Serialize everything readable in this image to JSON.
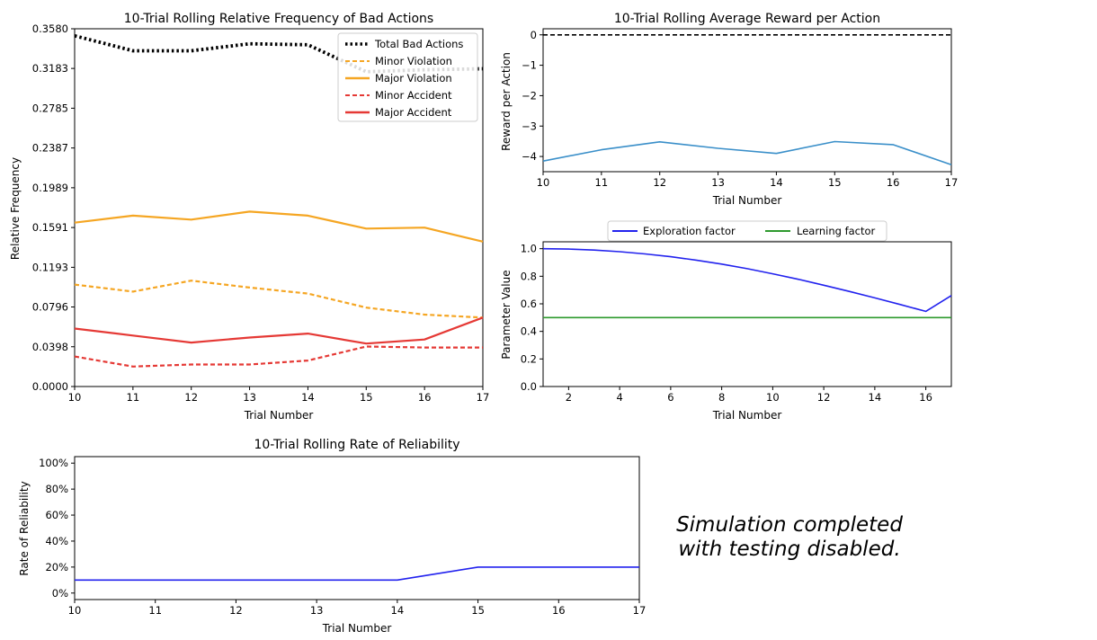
{
  "chart_data": [
    {
      "id": "bad",
      "type": "line",
      "title": "10-Trial Rolling Relative Frequency of Bad Actions",
      "xlabel": "Trial Number",
      "ylabel": "Relative Frequency",
      "xlim": [
        10,
        17
      ],
      "ylim": [
        0,
        0.358
      ],
      "xticks": [
        "10",
        "11",
        "12",
        "13",
        "14",
        "15",
        "16",
        "17"
      ],
      "yticks": [
        "0.0000",
        "0.0398",
        "0.0796",
        "0.1193",
        "0.1591",
        "0.1989",
        "0.2387",
        "0.2785",
        "0.3183",
        "0.3580"
      ],
      "legend_position": "upper right",
      "x": [
        10,
        11,
        12,
        13,
        14,
        15,
        16,
        17
      ],
      "series": [
        {
          "name": "Total Bad Actions",
          "color": "#000000",
          "style": "dotted",
          "values": [
            0.351,
            0.336,
            0.336,
            0.343,
            0.342,
            0.315,
            0.317,
            0.318
          ]
        },
        {
          "name": "Minor Violation",
          "color": "#f5a623",
          "style": "dashed",
          "values": [
            0.102,
            0.095,
            0.106,
            0.099,
            0.093,
            0.079,
            0.072,
            0.069
          ]
        },
        {
          "name": "Major Violation",
          "color": "#f5a623",
          "style": "solid",
          "values": [
            0.164,
            0.171,
            0.167,
            0.175,
            0.171,
            0.158,
            0.159,
            0.145
          ]
        },
        {
          "name": "Minor Accident",
          "color": "#e53935",
          "style": "dashed",
          "values": [
            0.03,
            0.02,
            0.022,
            0.022,
            0.026,
            0.04,
            0.039,
            0.039
          ]
        },
        {
          "name": "Major Accident",
          "color": "#e53935",
          "style": "solid",
          "values": [
            0.058,
            0.051,
            0.044,
            0.049,
            0.053,
            0.043,
            0.047,
            0.069
          ]
        }
      ]
    },
    {
      "id": "reward",
      "type": "line",
      "title": "10-Trial Rolling Average Reward per Action",
      "xlabel": "Trial Number",
      "ylabel": "Reward per Action",
      "xlim": [
        10,
        17
      ],
      "ylim": [
        -4.5,
        0.2
      ],
      "xticks": [
        "10",
        "11",
        "12",
        "13",
        "14",
        "15",
        "16",
        "17"
      ],
      "ytick_values": [
        0,
        -1,
        -2,
        -3,
        -4
      ],
      "yticks": [
        "0",
        "−1",
        "−2",
        "−3",
        "−4"
      ],
      "x": [
        10,
        11,
        12,
        13,
        14,
        15,
        16,
        17
      ],
      "series": [
        {
          "color": "#3a8fc9",
          "style": "solid",
          "values": [
            -4.15,
            -3.78,
            -3.52,
            -3.73,
            -3.9,
            -3.51,
            -3.61,
            -4.27
          ]
        },
        {
          "color": "#000000",
          "style": "dashed",
          "values": [
            0,
            0,
            0,
            0,
            0,
            0,
            0,
            0
          ]
        }
      ]
    },
    {
      "id": "params",
      "type": "line",
      "title": "",
      "xlabel": "Trial Number",
      "ylabel": "Parameter Value",
      "xlim": [
        1,
        17
      ],
      "ylim": [
        0,
        1.05
      ],
      "xtick_values": [
        2,
        4,
        6,
        8,
        10,
        12,
        14,
        16
      ],
      "xticks": [
        "2",
        "4",
        "6",
        "8",
        "10",
        "12",
        "14",
        "16"
      ],
      "ytick_values": [
        0,
        0.2,
        0.4,
        0.6,
        0.8,
        1.0
      ],
      "yticks": [
        "0.0",
        "0.2",
        "0.4",
        "0.6",
        "0.8",
        "1.0"
      ],
      "legend_position": "top (above plot)",
      "x": [
        1,
        2,
        3,
        4,
        5,
        6,
        7,
        8,
        9,
        10,
        11,
        12,
        13,
        14,
        15,
        16,
        17
      ],
      "series": [
        {
          "name": "Exploration factor",
          "color": "#2222ee",
          "style": "solid",
          "values": [
            1.0,
            0.997,
            0.99,
            0.978,
            0.962,
            0.942,
            0.917,
            0.888,
            0.855,
            0.818,
            0.778,
            0.735,
            0.69,
            0.643,
            0.595,
            0.545,
            0.66
          ]
        },
        {
          "name": "Learning factor",
          "color": "#2e9a2e",
          "style": "solid",
          "values": [
            0.5,
            0.5,
            0.5,
            0.5,
            0.5,
            0.5,
            0.5,
            0.5,
            0.5,
            0.5,
            0.5,
            0.5,
            0.5,
            0.5,
            0.5,
            0.5,
            0.5
          ]
        }
      ]
    },
    {
      "id": "reliability",
      "type": "line",
      "title": "10-Trial Rolling Rate of Reliability",
      "xlabel": "Trial Number",
      "ylabel": "Rate of Reliability",
      "xlim": [
        10,
        17
      ],
      "ylim": [
        -5,
        105
      ],
      "xticks": [
        "10",
        "11",
        "12",
        "13",
        "14",
        "15",
        "16",
        "17"
      ],
      "ytick_values": [
        0,
        20,
        40,
        60,
        80,
        100
      ],
      "yticks": [
        "0%",
        "20%",
        "40%",
        "60%",
        "80%",
        "100%"
      ],
      "x": [
        10,
        11,
        12,
        13,
        14,
        15,
        16,
        17
      ],
      "series": [
        {
          "color": "#2222ee",
          "style": "solid",
          "values": [
            10,
            10,
            10,
            10,
            10,
            20,
            20,
            20
          ]
        }
      ]
    }
  ],
  "status_note": {
    "line1": "Simulation completed",
    "line2": "with testing disabled."
  }
}
